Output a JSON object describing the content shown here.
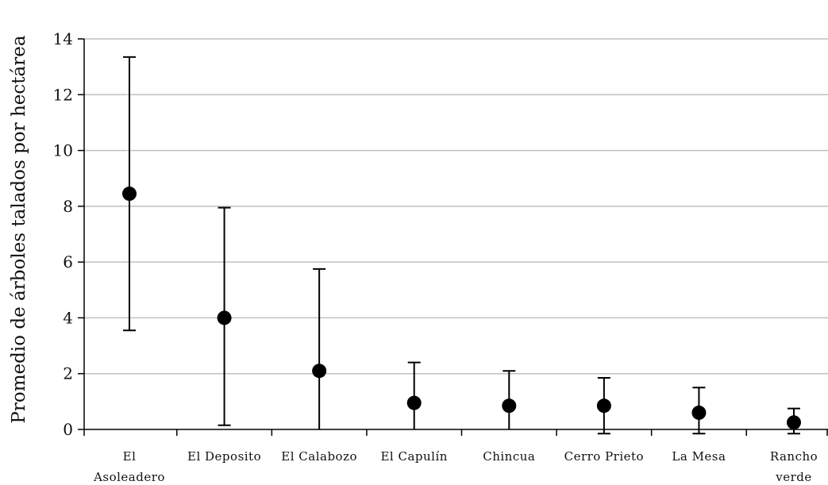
{
  "chart_data": {
    "type": "scatter",
    "title": "",
    "xlabel": "",
    "ylabel": "Promedio de árboles talados por hectárea",
    "ylim": [
      0,
      14
    ],
    "yticks": [
      0,
      2,
      4,
      6,
      8,
      10,
      12,
      14
    ],
    "grid": true,
    "legend": "none",
    "categories": [
      [
        "El",
        "Asoleadero"
      ],
      [
        "El Deposito"
      ],
      [
        "El Calabozo"
      ],
      [
        "El Capulín"
      ],
      [
        "Chincua"
      ],
      [
        "Cerro Prieto"
      ],
      [
        "La Mesa"
      ],
      [
        "Rancho",
        "verde"
      ]
    ],
    "series": [
      {
        "values": [
          8.45,
          4.0,
          2.1,
          0.95,
          0.85,
          0.85,
          0.6,
          0.25
        ],
        "error_low": [
          3.55,
          0.15,
          0.0,
          0.0,
          0.0,
          -0.15,
          -0.15,
          -0.15
        ],
        "error_high": [
          13.35,
          7.95,
          5.75,
          2.4,
          2.1,
          1.85,
          1.5,
          0.75
        ]
      }
    ],
    "colors": {
      "marker": "#000000",
      "grid": "#c0c0c0",
      "axis": "#000000"
    }
  }
}
